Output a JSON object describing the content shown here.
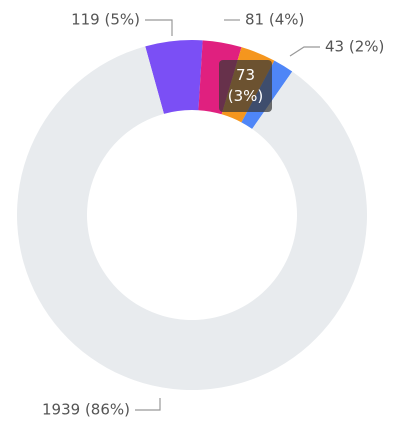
{
  "chart_data": {
    "type": "donut",
    "values": [
      119,
      81,
      73,
      43,
      1939
    ],
    "value_labels": [
      "119 (5%)",
      "81 (4%)",
      "73 (3%)",
      "43 (2%)",
      "1939 (86%)"
    ],
    "colors": [
      "#7b4ff5",
      "#e0207f",
      "#f5961e",
      "#4f86f7",
      "#e8ebee"
    ]
  }
}
